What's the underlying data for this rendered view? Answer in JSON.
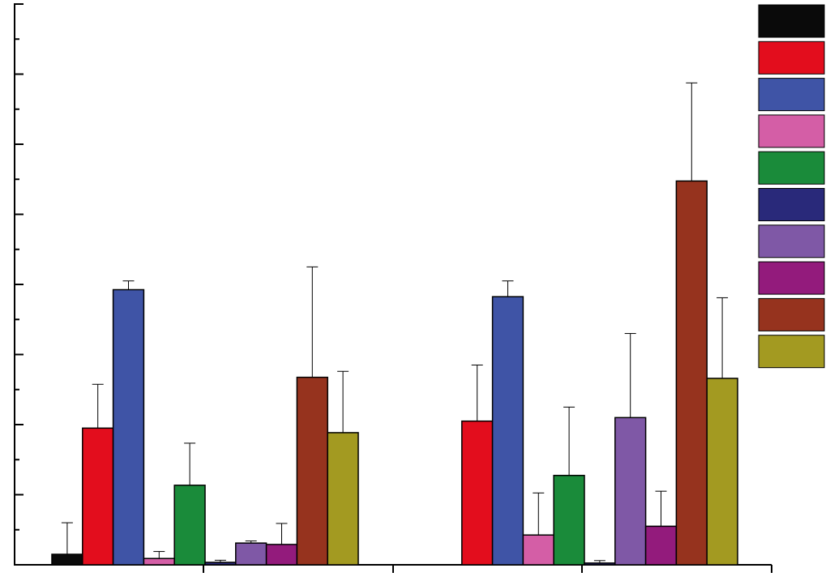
{
  "chart_data": {
    "type": "bar",
    "title": "",
    "xlabel": "",
    "ylabel": "",
    "ylim": [
      0,
      16
    ],
    "y_major_step": 2,
    "y_minor_step": 1,
    "grid": false,
    "legend": "top-right",
    "categories": [
      "",
      ""
    ],
    "series": [
      {
        "color": "#0a0a0a",
        "values": [
          0.3,
          null
        ],
        "errors": [
          0.9,
          null
        ]
      },
      {
        "color": "#e30d1d",
        "values": [
          3.9,
          4.1
        ],
        "errors": [
          1.25,
          1.6
        ]
      },
      {
        "color": "#3f54a6",
        "values": [
          7.85,
          7.65
        ],
        "errors": [
          0.25,
          0.45
        ]
      },
      {
        "color": "#d45ea6",
        "values": [
          0.18,
          0.85
        ],
        "errors": [
          0.2,
          1.2
        ]
      },
      {
        "color": "#1a8b3a",
        "values": [
          2.27,
          2.55
        ],
        "errors": [
          1.2,
          1.95
        ]
      },
      {
        "color": "#29297a",
        "values": [
          0.07,
          0.05
        ],
        "errors": [
          0.06,
          0.07
        ]
      },
      {
        "color": "#7f58a6",
        "values": [
          0.62,
          4.2
        ],
        "errors": [
          0.06,
          2.4
        ]
      },
      {
        "color": "#931b7c",
        "values": [
          0.58,
          1.1
        ],
        "errors": [
          0.6,
          1.0
        ]
      },
      {
        "color": "#96331e",
        "values": [
          5.35,
          10.95
        ],
        "errors": [
          3.15,
          2.8
        ]
      },
      {
        "color": "#a39a21",
        "values": [
          3.77,
          5.32
        ],
        "errors": [
          1.75,
          2.3
        ]
      }
    ]
  }
}
